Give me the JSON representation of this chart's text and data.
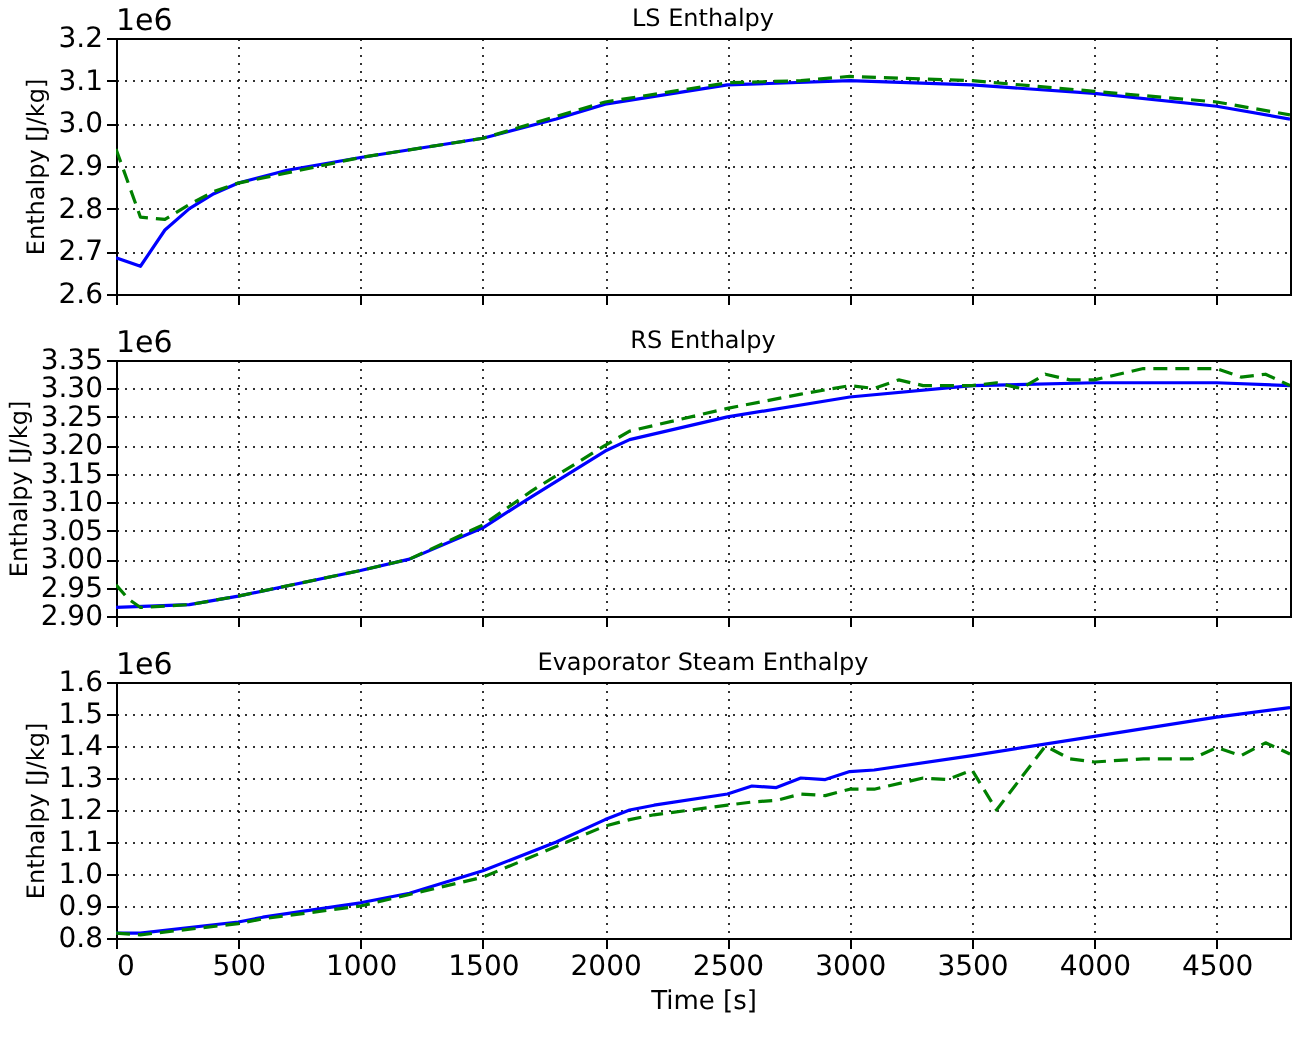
{
  "chart_data": [
    {
      "type": "line",
      "title": "LS Enthalpy",
      "ylabel": "Enthalpy [J/kg]",
      "annotations": [
        "1e6"
      ],
      "xlim": [
        0,
        4800
      ],
      "xticks": [
        0,
        500,
        1000,
        1500,
        2000,
        2500,
        3000,
        3500,
        4000,
        4500
      ],
      "ylim": [
        2.6,
        3.2
      ],
      "yticks": [
        2.6,
        2.7,
        2.8,
        2.9,
        {
          "value": 3,
          "label": "3.0"
        },
        3.1,
        3.2
      ],
      "grid": true,
      "tick_labels": "y",
      "series": [
        {
          "color": "#0000ff",
          "line_style": "solid",
          "x": [
            0,
            100,
            200,
            300,
            400,
            500,
            700,
            1000,
            1500,
            1800,
            2000,
            2500,
            3000,
            3500,
            4000,
            4500,
            4800
          ],
          "values": [
            2.685,
            2.665,
            2.75,
            2.8,
            2.835,
            2.86,
            2.89,
            2.92,
            2.965,
            3.01,
            3.045,
            3.09,
            3.1,
            3.09,
            3.07,
            3.04,
            3.01
          ]
        },
        {
          "color": "#008000",
          "line_style": "dashed",
          "x": [
            0,
            50,
            100,
            200,
            300,
            400,
            500,
            1000,
            1500,
            2000,
            2500,
            2800,
            3000,
            3500,
            4000,
            4500,
            4800
          ],
          "values": [
            2.94,
            2.86,
            2.78,
            2.775,
            2.81,
            2.84,
            2.86,
            2.92,
            2.965,
            3.05,
            3.095,
            3.1,
            3.11,
            3.1,
            3.075,
            3.05,
            3.02
          ]
        }
      ]
    },
    {
      "type": "line",
      "title": "RS Enthalpy",
      "ylabel": "Enthalpy [J/kg]",
      "annotations": [
        "1e6"
      ],
      "xlim": [
        0,
        4800
      ],
      "xticks": [
        0,
        500,
        1000,
        1500,
        2000,
        2500,
        3000,
        3500,
        4000,
        4500
      ],
      "ylim": [
        2.9,
        3.35
      ],
      "yticks": [
        {
          "value": 2.9,
          "label": "2.90"
        },
        2.95,
        {
          "value": 3,
          "label": "3.00"
        },
        3.05,
        {
          "value": 3.1,
          "label": "3.10"
        },
        3.15,
        {
          "value": 3.2,
          "label": "3.20"
        },
        3.25,
        {
          "value": 3.3,
          "label": "3.30"
        },
        3.35
      ],
      "grid": true,
      "tick_labels": "y",
      "series": [
        {
          "color": "#0000ff",
          "line_style": "solid",
          "x": [
            0,
            300,
            500,
            1000,
            1200,
            1500,
            1700,
            2000,
            2100,
            2500,
            3000,
            3500,
            4000,
            4500,
            4800
          ],
          "values": [
            2.915,
            2.92,
            2.935,
            2.98,
            3.0,
            3.055,
            3.11,
            3.19,
            3.21,
            3.25,
            3.285,
            3.305,
            3.31,
            3.31,
            3.305
          ]
        },
        {
          "color": "#008000",
          "line_style": "dashed",
          "x": [
            0,
            50,
            100,
            300,
            500,
            1000,
            1200,
            1500,
            1700,
            2000,
            2100,
            2500,
            2800,
            3000,
            3100,
            3200,
            3300,
            3500,
            3600,
            3700,
            3800,
            3900,
            4000,
            4200,
            4500,
            4600,
            4700,
            4800
          ],
          "values": [
            2.955,
            2.93,
            2.915,
            2.92,
            2.935,
            2.98,
            3.0,
            3.06,
            3.12,
            3.2,
            3.225,
            3.265,
            3.29,
            3.305,
            3.3,
            3.315,
            3.305,
            3.305,
            3.31,
            3.3,
            3.325,
            3.315,
            3.315,
            3.335,
            3.335,
            3.32,
            3.325,
            3.305
          ]
        }
      ]
    },
    {
      "type": "line",
      "title": "Evaporator Steam Enthalpy",
      "xlabel": "Time [s]",
      "ylabel": "Enthalpy [J/kg]",
      "annotations": [
        "1e6"
      ],
      "xlim": [
        0,
        4800
      ],
      "xticks": [
        0,
        500,
        1000,
        1500,
        2000,
        2500,
        3000,
        3500,
        4000,
        4500
      ],
      "ylim": [
        0.8,
        1.6
      ],
      "yticks": [
        0.8,
        0.9,
        {
          "value": 1,
          "label": "1.0"
        },
        1.1,
        1.2,
        1.3,
        1.4,
        1.5,
        1.6
      ],
      "grid": true,
      "series": [
        {
          "color": "#0000ff",
          "line_style": "solid",
          "x": [
            0,
            100,
            500,
            600,
            1000,
            1200,
            1500,
            1800,
            2000,
            2100,
            2200,
            2500,
            2600,
            2700,
            2800,
            2900,
            3000,
            3100,
            3500,
            4000,
            4500,
            4800
          ],
          "values": [
            0.815,
            0.815,
            0.85,
            0.865,
            0.91,
            0.94,
            1.01,
            1.1,
            1.17,
            1.2,
            1.215,
            1.25,
            1.275,
            1.27,
            1.3,
            1.295,
            1.32,
            1.325,
            1.37,
            1.43,
            1.49,
            1.52
          ]
        },
        {
          "color": "#008000",
          "line_style": "dashed",
          "x": [
            0,
            100,
            500,
            600,
            1000,
            1500,
            2000,
            2100,
            2200,
            2500,
            2600,
            2700,
            2800,
            2900,
            3000,
            3100,
            3300,
            3400,
            3500,
            3600,
            3800,
            3900,
            4000,
            4200,
            4400,
            4500,
            4600,
            4700,
            4800
          ],
          "values": [
            0.815,
            0.81,
            0.845,
            0.86,
            0.9,
            0.99,
            1.15,
            1.17,
            1.185,
            1.215,
            1.225,
            1.23,
            1.25,
            1.245,
            1.265,
            1.265,
            1.3,
            1.295,
            1.325,
            1.2,
            1.4,
            1.36,
            1.35,
            1.36,
            1.36,
            1.395,
            1.37,
            1.41,
            1.375
          ]
        }
      ]
    }
  ]
}
